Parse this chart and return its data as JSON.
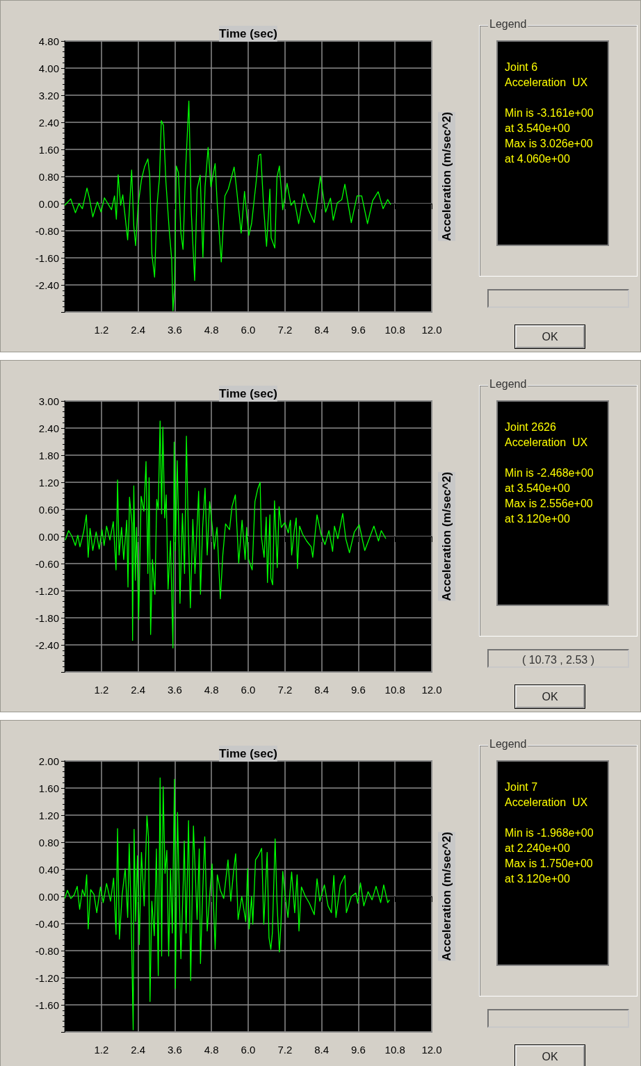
{
  "chart_data": [
    {
      "type": "line",
      "xlabel": "Time (sec)",
      "ylabel": "Acceleration (m/sec^2)",
      "grid": true,
      "xlim": [
        0,
        12
      ],
      "xticks": [
        {
          "value": 0,
          "label": null
        },
        {
          "value": 1.2,
          "label": "1.2"
        },
        {
          "value": 2.4,
          "label": "2.4"
        },
        {
          "value": 3.6,
          "label": "3.6"
        },
        {
          "value": 4.8,
          "label": "4.8"
        },
        {
          "value": 6.0,
          "label": "6.0"
        },
        {
          "value": 7.2,
          "label": "7.2"
        },
        {
          "value": 8.4,
          "label": "8.4"
        },
        {
          "value": 9.6,
          "label": "9.6"
        },
        {
          "value": 10.8,
          "label": "10.8"
        },
        {
          "value": 12.0,
          "label": "12.0"
        }
      ],
      "ylim": [
        -3.2,
        4.8
      ],
      "yticks": [
        {
          "value": -3.2,
          "label": null
        },
        {
          "value": -2.4,
          "label": "-2.40"
        },
        {
          "value": -1.6,
          "label": "-1.60"
        },
        {
          "value": -0.8,
          "label": "-0.80"
        },
        {
          "value": 0,
          "label": "0.00"
        },
        {
          "value": 0.8,
          "label": "0.80"
        },
        {
          "value": 1.6,
          "label": "1.60"
        },
        {
          "value": 2.4,
          "label": "2.40"
        },
        {
          "value": 3.2,
          "label": "3.20"
        },
        {
          "value": 4.0,
          "label": "4.00"
        },
        {
          "value": 4.8,
          "label": "4.80"
        }
      ],
      "annotations": [
        "Legend",
        "Joint 6",
        "Acceleration  UX",
        "Min is -3.161e+00",
        "at 3.540e+00",
        "Max is 3.026e+00",
        "at 4.060e+00",
        "OK"
      ],
      "series": [
        {
          "color": "#00ff00",
          "x": [
            0,
            0.2,
            0.35,
            0.47,
            0.58,
            0.73,
            0.81,
            0.92,
            1.07,
            1.19,
            1.3,
            1.53,
            1.63,
            1.69,
            1.75,
            1.83,
            1.9,
            2.06,
            2.19,
            2.26,
            2.32,
            2.4,
            2.51,
            2.61,
            2.72,
            2.78,
            2.85,
            2.94,
            3.02,
            3.1,
            3.16,
            3.23,
            3.31,
            3.42,
            3.5,
            3.54,
            3.59,
            3.65,
            3.72,
            3.8,
            3.87,
            3.95,
            4.06,
            4.14,
            4.25,
            4.33,
            4.43,
            4.52,
            4.59,
            4.69,
            4.78,
            4.92,
            4.99,
            5.12,
            5.24,
            5.35,
            5.54,
            5.62,
            5.77,
            5.88,
            6.02,
            6.11,
            6.26,
            6.34,
            6.41,
            6.51,
            6.6,
            6.71,
            6.75,
            6.87,
            6.94,
            7.02,
            7.13,
            7.27,
            7.4,
            7.51,
            7.65,
            7.81,
            7.97,
            8.16,
            8.36,
            8.53,
            8.69,
            8.78,
            8.91,
            9.06,
            9.16,
            9.37,
            9.56,
            9.71,
            9.9,
            10.07,
            10.25,
            10.41,
            10.56,
            10.66
          ],
          "values": [
            -0.05,
            0.14,
            -0.27,
            0,
            -0.15,
            0.46,
            0.16,
            -0.39,
            0.05,
            -0.25,
            0.17,
            -0.18,
            0.23,
            -0.46,
            0.85,
            -0.05,
            0.26,
            -1.07,
            0.99,
            -0.66,
            -1.24,
            -0.05,
            0.7,
            1.08,
            1.32,
            0.84,
            -1.48,
            -2.17,
            -0.05,
            0.77,
            2.45,
            2.31,
            0.64,
            -0.8,
            -1.65,
            -3.161,
            -2.51,
            1.11,
            0.91,
            -0.87,
            -1.35,
            0.91,
            3.026,
            -0.25,
            -2.27,
            0.43,
            0.84,
            -1.59,
            0.5,
            1.66,
            0.5,
            1.18,
            -0.05,
            -1.72,
            0.23,
            0.43,
            1.08,
            0.43,
            -0.87,
            0.36,
            -0.94,
            -0.59,
            0.64,
            1.42,
            1.46,
            -0.18,
            -1.26,
            0.43,
            -1.01,
            -1.31,
            0.77,
            1.11,
            -0.18,
            0.6,
            -0.05,
            0.09,
            -0.59,
            0.29,
            -0.18,
            -0.56,
            0.81,
            -0.25,
            0.16,
            -0.49,
            0.02,
            0.12,
            0.57,
            -0.56,
            0.23,
            0.23,
            -0.59,
            0.09,
            0.35,
            -0.15,
            0.12,
            -0.03
          ]
        }
      ]
    },
    {
      "type": "line",
      "xlabel": "Time (sec)",
      "ylabel": "Acceleration (m/sec^2)",
      "grid": true,
      "xlim": [
        0,
        12
      ],
      "xticks": [
        {
          "value": 0,
          "label": null
        },
        {
          "value": 1.2,
          "label": "1.2"
        },
        {
          "value": 2.4,
          "label": "2.4"
        },
        {
          "value": 3.6,
          "label": "3.6"
        },
        {
          "value": 4.8,
          "label": "4.8"
        },
        {
          "value": 6.0,
          "label": "6.0"
        },
        {
          "value": 7.2,
          "label": "7.2"
        },
        {
          "value": 8.4,
          "label": "8.4"
        },
        {
          "value": 9.6,
          "label": "9.6"
        },
        {
          "value": 10.8,
          "label": "10.8"
        },
        {
          "value": 12.0,
          "label": "12.0"
        }
      ],
      "ylim": [
        -3.0,
        3.0
      ],
      "yticks": [
        {
          "value": -3.0,
          "label": null
        },
        {
          "value": -2.4,
          "label": "-2.40"
        },
        {
          "value": -1.8,
          "label": "-1.80"
        },
        {
          "value": -1.2,
          "label": "-1.20"
        },
        {
          "value": -0.6,
          "label": "-0.60"
        },
        {
          "value": 0,
          "label": "0.00"
        },
        {
          "value": 0.6,
          "label": "0.60"
        },
        {
          "value": 1.2,
          "label": "1.20"
        },
        {
          "value": 1.8,
          "label": "1.80"
        },
        {
          "value": 2.4,
          "label": "2.40"
        },
        {
          "value": 3.0,
          "label": "3.00"
        }
      ],
      "annotations": [
        "Legend",
        "Joint 2626",
        "Acceleration  UX",
        "Min is -2.468e+00",
        "at 3.540e+00",
        "Max is 2.556e+00",
        "at 3.120e+00",
        "( 10.73 , 2.53 )",
        "OK"
      ],
      "series": [
        {
          "color": "#00ff00",
          "x": [
            0.02,
            0.13,
            0.24,
            0.35,
            0.43,
            0.5,
            0.62,
            0.71,
            0.77,
            0.83,
            0.92,
            1.03,
            1.13,
            1.22,
            1.29,
            1.37,
            1.48,
            1.59,
            1.68,
            1.73,
            1.78,
            1.86,
            1.93,
            2.03,
            2.07,
            2.12,
            2.2,
            2.22,
            2.26,
            2.31,
            2.35,
            2.42,
            2.5,
            2.59,
            2.66,
            2.72,
            2.76,
            2.81,
            2.87,
            2.95,
            3.01,
            3.06,
            3.12,
            3.17,
            3.21,
            3.27,
            3.32,
            3.38,
            3.46,
            3.54,
            3.58,
            3.62,
            3.68,
            3.74,
            3.77,
            3.85,
            3.92,
            3.98,
            4.04,
            4.11,
            4.19,
            4.26,
            4.38,
            4.44,
            4.51,
            4.59,
            4.66,
            4.74,
            4.83,
            4.89,
            4.98,
            5.09,
            5.17,
            5.26,
            5.39,
            5.47,
            5.58,
            5.69,
            5.8,
            5.9,
            5.95,
            6.0,
            6.13,
            6.22,
            6.31,
            6.39,
            6.43,
            6.52,
            6.59,
            6.63,
            6.71,
            6.74,
            6.8,
            6.86,
            6.95,
            7.01,
            7.08,
            7.2,
            7.31,
            7.38,
            7.42,
            7.51,
            7.57,
            7.61,
            7.68,
            7.78,
            7.91,
            8.06,
            8.11,
            8.25,
            8.38,
            8.51,
            8.64,
            8.76,
            8.82,
            8.93,
            9.09,
            9.19,
            9.31,
            9.47,
            9.63,
            9.81,
            9.94,
            10.11,
            10.26,
            10.35,
            10.5
          ],
          "values": [
            -0.08,
            0.13,
            0,
            -0.2,
            0.03,
            -0.23,
            0.1,
            0.48,
            -0.46,
            0.18,
            -0.31,
            0.1,
            -0.28,
            0.15,
            -0.2,
            0.23,
            -0.08,
            0.33,
            -0.74,
            1.25,
            -0.41,
            0.2,
            -0.51,
            0.36,
            -1.12,
            0.87,
            0.28,
            -2.3,
            1.12,
            -0.97,
            0.2,
            -1.84,
            0.89,
            0.56,
            1.66,
            -0.82,
            1.3,
            -2.17,
            -0.51,
            -1.28,
            0.82,
            0.6,
            2.556,
            0.5,
            2.42,
            0.41,
            0.92,
            -1.17,
            -0.1,
            -2.468,
            2.09,
            -0.31,
            1.68,
            -0.2,
            -1.48,
            0.51,
            -0.82,
            2.22,
            0.2,
            -1.58,
            0.38,
            -0.82,
            1.0,
            -1.28,
            0.2,
            1.07,
            -0.41,
            0.77,
            0.2,
            -0.28,
            0.2,
            -1.38,
            -0.41,
            0.28,
            0.15,
            0.66,
            0.92,
            -0.59,
            0.36,
            -0.51,
            0.2,
            -0.48,
            -0.74,
            0.77,
            1.05,
            1.2,
            0,
            -0.46,
            0.43,
            -1.02,
            0.48,
            -0.92,
            -1.07,
            0.79,
            -0.69,
            0.66,
            0.2,
            0.31,
            0.08,
            0.36,
            -0.41,
            0.15,
            0.41,
            -0.71,
            0.23,
            0.05,
            -0.1,
            -0.23,
            -0.46,
            0.48,
            0.05,
            -0.18,
            0.13,
            -0.33,
            0.23,
            -0.05,
            0.51,
            -0.05,
            -0.36,
            0.1,
            0.26,
            -0.31,
            -0.08,
            0.23,
            -0.1,
            0.13,
            -0.05
          ]
        }
      ]
    },
    {
      "type": "line",
      "xlabel": "Time (sec)",
      "ylabel": "Acceleration (m/sec^2)",
      "grid": true,
      "xlim": [
        0,
        12
      ],
      "xticks": [
        {
          "value": 0,
          "label": null
        },
        {
          "value": 1.2,
          "label": "1.2"
        },
        {
          "value": 2.4,
          "label": "2.4"
        },
        {
          "value": 3.6,
          "label": "3.6"
        },
        {
          "value": 4.8,
          "label": "4.8"
        },
        {
          "value": 6.0,
          "label": "6.0"
        },
        {
          "value": 7.2,
          "label": "7.2"
        },
        {
          "value": 8.4,
          "label": "8.4"
        },
        {
          "value": 9.6,
          "label": "9.6"
        },
        {
          "value": 10.8,
          "label": "10.8"
        },
        {
          "value": 12.0,
          "label": "12.0"
        }
      ],
      "ylim": [
        -2.0,
        2.0
      ],
      "yticks": [
        {
          "value": -2.0,
          "label": null
        },
        {
          "value": -1.6,
          "label": "-1.60"
        },
        {
          "value": -1.2,
          "label": "-1.20"
        },
        {
          "value": -0.8,
          "label": "-0.80"
        },
        {
          "value": -0.4,
          "label": "-0.40"
        },
        {
          "value": 0,
          "label": "0.00"
        },
        {
          "value": 0.4,
          "label": "0.40"
        },
        {
          "value": 0.8,
          "label": "0.80"
        },
        {
          "value": 1.2,
          "label": "1.20"
        },
        {
          "value": 1.6,
          "label": "1.60"
        },
        {
          "value": 2.0,
          "label": "2.00"
        }
      ],
      "annotations": [
        "Legend",
        "Joint 7",
        "Acceleration  UX",
        "Min is -1.968e+00",
        "at 2.240e+00",
        "Max is 1.750e+00",
        "at 3.120e+00",
        "OK"
      ],
      "series": [
        {
          "color": "#00ff00",
          "x": [
            0,
            0.09,
            0.2,
            0.31,
            0.41,
            0.49,
            0.58,
            0.66,
            0.72,
            0.77,
            0.85,
            0.96,
            1.05,
            1.17,
            1.26,
            1.37,
            1.5,
            1.6,
            1.68,
            1.73,
            1.79,
            1.88,
            1.98,
            2.06,
            2.11,
            2.17,
            2.24,
            2.27,
            2.32,
            2.38,
            2.44,
            2.51,
            2.6,
            2.69,
            2.74,
            2.79,
            2.85,
            2.93,
            3.0,
            3.06,
            3.12,
            3.17,
            3.22,
            3.28,
            3.34,
            3.4,
            3.46,
            3.52,
            3.59,
            3.62,
            3.69,
            3.75,
            3.8,
            3.88,
            3.91,
            3.97,
            4.05,
            4.12,
            4.21,
            4.33,
            4.4,
            4.44,
            4.52,
            4.58,
            4.66,
            4.75,
            4.82,
            4.92,
            4.99,
            5.09,
            5.2,
            5.34,
            5.43,
            5.52,
            5.59,
            5.67,
            5.79,
            5.92,
            5.98,
            6.03,
            6.11,
            6.15,
            6.24,
            6.34,
            6.44,
            6.51,
            6.62,
            6.68,
            6.74,
            6.79,
            6.88,
            6.94,
            7.02,
            7.07,
            7.13,
            7.21,
            7.3,
            7.42,
            7.52,
            7.6,
            7.66,
            7.74,
            7.87,
            8.0,
            8.16,
            8.25,
            8.34,
            8.49,
            8.61,
            8.72,
            8.8,
            8.87,
            9.01,
            9.16,
            9.21,
            9.37,
            9.52,
            9.58,
            9.67,
            9.78,
            9.92,
            10.05,
            10.18,
            10.33,
            10.43,
            10.56,
            10.62
          ],
          "values": [
            -0.03,
            0.09,
            -0.03,
            0.02,
            0.15,
            -0.19,
            0.1,
            0,
            0.32,
            -0.48,
            0.1,
            0.03,
            -0.24,
            0.14,
            -0.09,
            0.19,
            -0.07,
            0.27,
            -0.56,
            1.0,
            -0.63,
            0.03,
            0.41,
            -0.31,
            0.78,
            -0.2,
            -1.968,
            0.99,
            -0.37,
            0.6,
            -0.71,
            0.65,
            -0.14,
            1.19,
            0.88,
            -1.55,
            -0.07,
            -0.58,
            0.7,
            -1.17,
            1.75,
            -0.88,
            1.62,
            0.34,
            0.68,
            -0.88,
            0.41,
            -0.54,
            1.73,
            -1.36,
            1.24,
            -0.03,
            -0.92,
            0.26,
            0.82,
            -0.54,
            1.12,
            -1.24,
            1.04,
            -0.34,
            0.7,
            -0.99,
            0.15,
            0.88,
            -0.51,
            0.07,
            0.48,
            -0.78,
            0.32,
            0.09,
            -0.03,
            0.54,
            -0.07,
            0.36,
            0.63,
            -0.34,
            0,
            -0.37,
            0.41,
            -0.48,
            0,
            -0.41,
            0.54,
            0.61,
            0.71,
            -0.41,
            0.65,
            -0.61,
            -0.78,
            -0.54,
            0.85,
            -0.07,
            -0.82,
            -0.41,
            0.37,
            0,
            -0.31,
            0.36,
            -0.24,
            0.32,
            -0.51,
            0.14,
            0,
            -0.1,
            -0.27,
            0.26,
            -0.07,
            0.17,
            -0.14,
            -0.24,
            0.31,
            -0.31,
            0.17,
            0.31,
            -0.24,
            0,
            0.05,
            -0.1,
            0.2,
            -0.14,
            0.07,
            -0.05,
            0.15,
            -0.09,
            0.17,
            -0.09,
            -0.05
          ]
        }
      ]
    }
  ]
}
